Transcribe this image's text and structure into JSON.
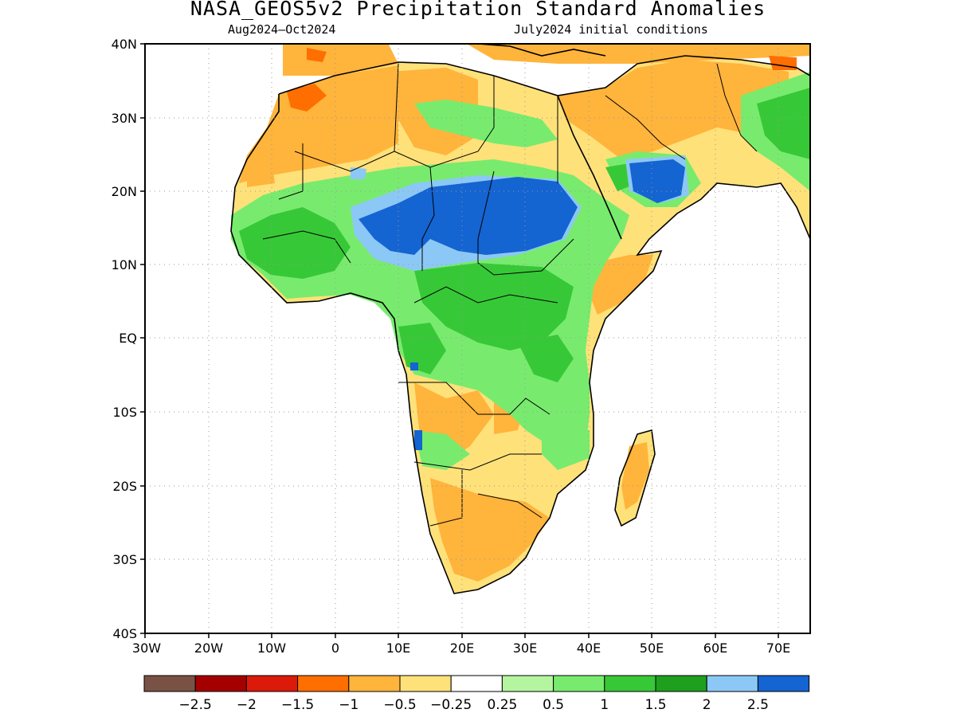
{
  "title": "NASA_GEOS5v2 Precipitation Standard Anomalies",
  "subtitle_left": "Aug2024–Oct2024",
  "subtitle_right": "July2024 initial conditions",
  "lat_labels": [
    "40N",
    "30N",
    "20N",
    "10N",
    "EQ",
    "10S",
    "20S",
    "30S",
    "40S"
  ],
  "lon_labels": [
    "30W",
    "20W",
    "10W",
    "0",
    "10E",
    "20E",
    "30E",
    "40E",
    "50E",
    "60E",
    "70E"
  ],
  "colorbar": {
    "colors": [
      "#7a5245",
      "#a50000",
      "#dc1a0a",
      "#ff6e00",
      "#ffb43c",
      "#ffe17a",
      "#ffffff",
      "#b4f5a0",
      "#78eb6e",
      "#37c837",
      "#1ea01e",
      "#8cc8f5",
      "#1464d2"
    ],
    "labels": [
      "−2.5",
      "−2",
      "−1.5",
      "−1",
      "−0.5",
      "−0.25",
      "0.25",
      "0.5",
      "1",
      "1.5",
      "2",
      "2.5"
    ]
  },
  "colors": {
    "land_dry_orange": "#ffb43c",
    "land_dry_yellow": "#ffe17a",
    "land_wet_green": "#78eb6e",
    "land_wet_darkgreen": "#37c837",
    "land_very_wet_blue": "#1464d2",
    "land_wet_lightblue": "#8cc8f5",
    "land_very_dry_red": "#ff6e00"
  }
}
